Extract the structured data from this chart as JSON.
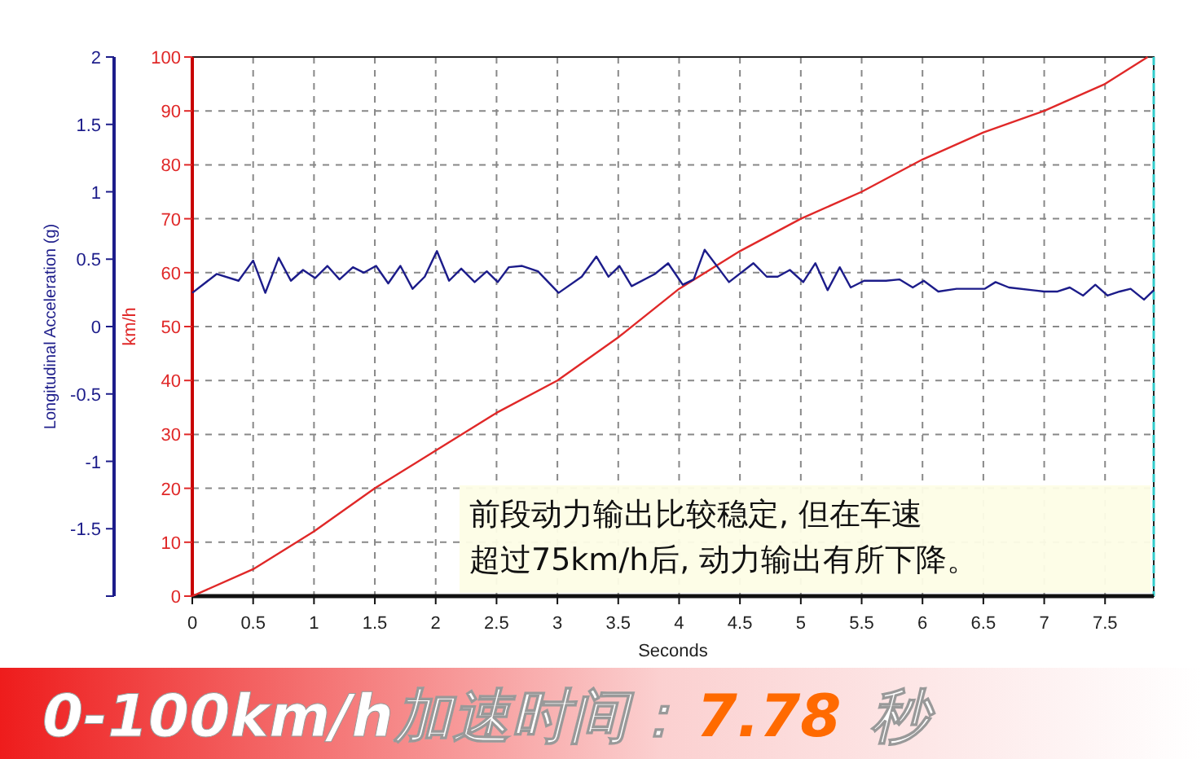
{
  "chart_data": {
    "type": "line",
    "xlabel": "Seconds",
    "ylabel": "km/h",
    "y2label": "Longitudinal Acceleration (g)",
    "xlim": [
      0,
      7.9
    ],
    "xticks": [
      0,
      0.5,
      1,
      1.5,
      2,
      2.5,
      3,
      3.5,
      4,
      4.5,
      5,
      5.5,
      6,
      6.5,
      7,
      7.5
    ],
    "ylim": [
      0,
      100
    ],
    "yticks": [
      0,
      10,
      20,
      30,
      40,
      50,
      60,
      70,
      80,
      90,
      100
    ],
    "y2lim": [
      -2,
      2
    ],
    "y2ticks": [
      {
        "value": -2,
        "label": null
      },
      -1.5,
      -1,
      -0.5,
      0,
      0.5,
      1,
      1.5,
      2
    ],
    "grid": true,
    "line_style": "solid",
    "series": [
      {
        "color": "#e02828",
        "x": [
          0,
          0.5,
          1,
          1.5,
          2,
          2.5,
          3,
          3.5,
          4,
          4.5,
          5,
          5.5,
          6,
          6.5,
          7,
          7.5,
          7.85
        ],
        "values": [
          0,
          5,
          12,
          20,
          27,
          34,
          40,
          48,
          57,
          64,
          70,
          75,
          81,
          86,
          90,
          95,
          100
        ]
      },
      {
        "color": "#1c1c8a",
        "axis": "y2",
        "x": [
          0,
          0.2,
          0.38,
          0.5,
          0.6,
          0.71,
          0.81,
          0.91,
          1.01,
          1.11,
          1.21,
          1.32,
          1.41,
          1.51,
          1.61,
          1.71,
          1.81,
          1.91,
          2.01,
          2.11,
          2.21,
          2.32,
          2.42,
          2.51,
          2.6,
          2.71,
          2.84,
          3.01,
          3.2,
          3.32,
          3.42,
          3.51,
          3.61,
          3.8,
          3.91,
          4.03,
          4.12,
          4.21,
          4.41,
          4.61,
          4.72,
          4.81,
          4.91,
          5.02,
          5.12,
          5.22,
          5.32,
          5.41,
          5.52,
          5.7,
          5.81,
          5.92,
          6.01,
          6.13,
          6.28,
          6.51,
          6.6,
          6.71,
          7.0,
          7.11,
          7.21,
          7.32,
          7.42,
          7.52,
          7.62,
          7.71,
          7.82,
          7.9
        ],
        "values": [
          0.25,
          0.39,
          0.34,
          0.49,
          0.25,
          0.51,
          0.34,
          0.42,
          0.36,
          0.45,
          0.35,
          0.44,
          0.4,
          0.45,
          0.32,
          0.45,
          0.28,
          0.37,
          0.56,
          0.34,
          0.43,
          0.33,
          0.41,
          0.33,
          0.44,
          0.45,
          0.41,
          0.25,
          0.37,
          0.52,
          0.37,
          0.45,
          0.3,
          0.39,
          0.47,
          0.31,
          0.35,
          0.57,
          0.33,
          0.47,
          0.37,
          0.37,
          0.42,
          0.33,
          0.47,
          0.27,
          0.44,
          0.29,
          0.34,
          0.34,
          0.35,
          0.29,
          0.34,
          0.26,
          0.28,
          0.28,
          0.33,
          0.29,
          0.26,
          0.26,
          0.29,
          0.23,
          0.31,
          0.23,
          0.26,
          0.28,
          0.2,
          0.27
        ]
      }
    ],
    "annotations": [
      "前段动力输出比较稳定, 但在车速",
      "超过75km/h后, 动力输出有所下降。",
      "0-100km/h加速时间：",
      "7.78",
      "秒"
    ]
  }
}
